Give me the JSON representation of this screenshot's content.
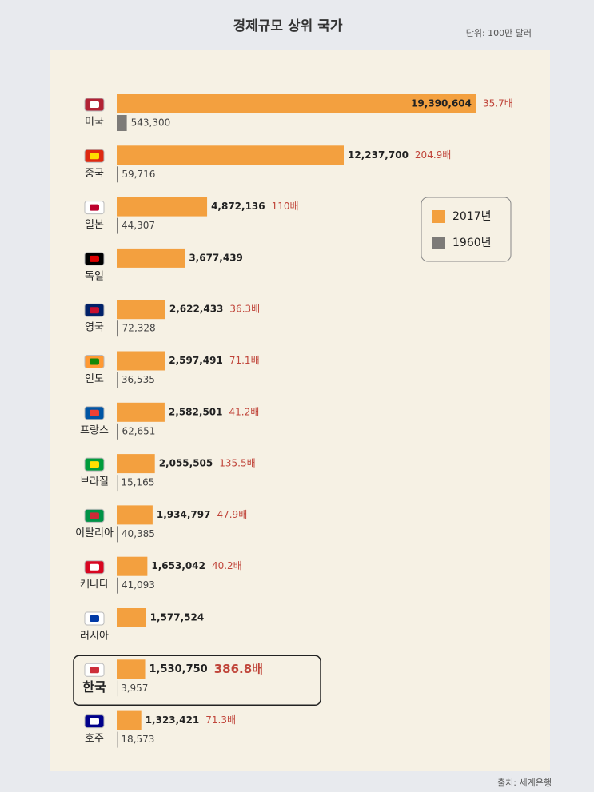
{
  "chart_data": {
    "type": "bar",
    "orientation": "horizontal",
    "title": "경제규모 상위 국가",
    "subtitle": "단위: 100만 달러",
    "source": "출처: 세계은행",
    "categories": [
      "미국",
      "중국",
      "일본",
      "독일",
      "영국",
      "인도",
      "프랑스",
      "브라질",
      "이탈리아",
      "캐나다",
      "러시아",
      "한국",
      "호주"
    ],
    "series": [
      {
        "name": "2017년",
        "color": "#f3a03f",
        "values": [
          19390604,
          12237700,
          4872136,
          3677439,
          2622433,
          2597491,
          2582501,
          2055505,
          1934797,
          1653042,
          1577524,
          1530750,
          1323421
        ],
        "value_labels": [
          "19,390,604",
          "12,237,700",
          "4,872,136",
          "3,677,439",
          "2,622,433",
          "2,597,491",
          "2,582,501",
          "2,055,505",
          "1,934,797",
          "1,653,042",
          "1,577,524",
          "1,530,750",
          "1,323,421"
        ]
      },
      {
        "name": "1960년",
        "color": "#7d7b78",
        "values": [
          543300,
          59716,
          44307,
          null,
          72328,
          36535,
          62651,
          15165,
          40385,
          41093,
          null,
          3957,
          18573
        ],
        "value_labels": [
          "543,300",
          "59,716",
          "44,307",
          null,
          "72,328",
          "36,535",
          "62,651",
          "15,165",
          "40,385",
          "41,093",
          null,
          "3,957",
          "18,573"
        ]
      }
    ],
    "annotations": [
      "35.7배",
      "204.9배",
      "110배",
      null,
      "36.3배",
      "71.1배",
      "41.2배",
      "135.5배",
      "47.9배",
      "40.2배",
      null,
      "386.8배",
      "71.3배"
    ],
    "legend": "upper right"
  }
}
